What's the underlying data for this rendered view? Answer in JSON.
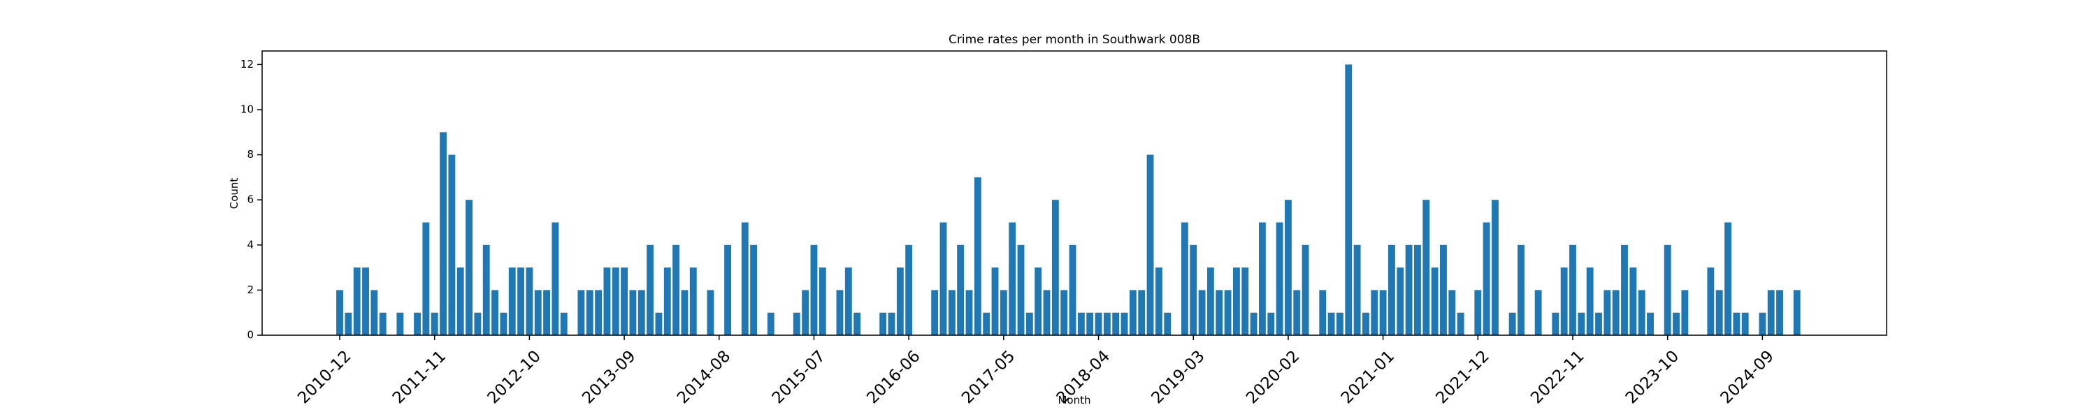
{
  "chart_data": {
    "type": "bar",
    "title": "Crime rates per month in Southwark 008B",
    "x_label": "Month",
    "y_label": "Count",
    "color": "#1f77b4",
    "categories": [
      "2010-12",
      null,
      null,
      null,
      null,
      null,
      null,
      null,
      null,
      null,
      null,
      "2011-11",
      null,
      null,
      null,
      null,
      null,
      null,
      null,
      null,
      null,
      null,
      "2012-10",
      null,
      null,
      null,
      null,
      null,
      null,
      null,
      null,
      null,
      null,
      "2013-09",
      null,
      null,
      null,
      null,
      null,
      null,
      null,
      null,
      null,
      null,
      "2014-08",
      null,
      null,
      null,
      null,
      null,
      null,
      null,
      null,
      null,
      null,
      "2015-07",
      null,
      null,
      null,
      null,
      null,
      null,
      null,
      null,
      null,
      null,
      "2016-06",
      null,
      null,
      null,
      null,
      null,
      null,
      null,
      null,
      null,
      null,
      "2017-05",
      null,
      null,
      null,
      null,
      null,
      null,
      null,
      null,
      null,
      null,
      "2018-04",
      null,
      null,
      null,
      null,
      null,
      null,
      null,
      null,
      null,
      null,
      "2019-03",
      null,
      null,
      null,
      null,
      null,
      null,
      null,
      null,
      null,
      null,
      "2020-02",
      null,
      null,
      null,
      null,
      null,
      null,
      null,
      null,
      null,
      null,
      "2021-01",
      null,
      null,
      null,
      null,
      null,
      null,
      null,
      null,
      null,
      null,
      "2021-12",
      null,
      null,
      null,
      null,
      null,
      null,
      null,
      null,
      null,
      null,
      "2022-11",
      null,
      null,
      null,
      null,
      null,
      null,
      null,
      null,
      null,
      null,
      "2023-10",
      null,
      null,
      null,
      null,
      null,
      null,
      null,
      null,
      null,
      null,
      "2024-09",
      null,
      null,
      null,
      null
    ],
    "values": [
      2,
      1,
      3,
      3,
      2,
      1,
      0,
      1,
      0,
      1,
      5,
      1,
      9,
      8,
      3,
      6,
      1,
      4,
      2,
      1,
      3,
      3,
      3,
      2,
      2,
      5,
      1,
      0,
      2,
      2,
      2,
      3,
      3,
      3,
      2,
      2,
      4,
      1,
      3,
      4,
      2,
      3,
      0,
      2,
      0,
      4,
      0,
      5,
      4,
      0,
      1,
      0,
      0,
      1,
      2,
      4,
      3,
      0,
      2,
      3,
      1,
      0,
      0,
      1,
      1,
      3,
      4,
      0,
      0,
      2,
      5,
      2,
      4,
      2,
      7,
      1,
      3,
      2,
      5,
      4,
      1,
      3,
      2,
      6,
      2,
      4,
      1,
      1,
      1,
      1,
      1,
      1,
      2,
      2,
      8,
      3,
      1,
      0,
      5,
      4,
      2,
      3,
      2,
      2,
      3,
      3,
      1,
      5,
      1,
      5,
      6,
      2,
      4,
      0,
      2,
      1,
      1,
      12,
      4,
      1,
      2,
      2,
      4,
      3,
      4,
      4,
      6,
      3,
      4,
      2,
      1,
      0,
      2,
      5,
      6,
      0,
      1,
      4,
      0,
      2,
      0,
      1,
      3,
      4,
      1,
      3,
      1,
      2,
      2,
      4,
      3,
      2,
      1,
      0,
      4,
      1,
      2,
      0,
      0,
      3,
      2,
      5,
      1,
      1,
      0,
      1,
      2,
      2,
      0,
      2
    ],
    "ylim": [
      0,
      12.6
    ],
    "yticks": [
      0,
      2,
      4,
      6,
      8,
      10,
      12
    ]
  }
}
